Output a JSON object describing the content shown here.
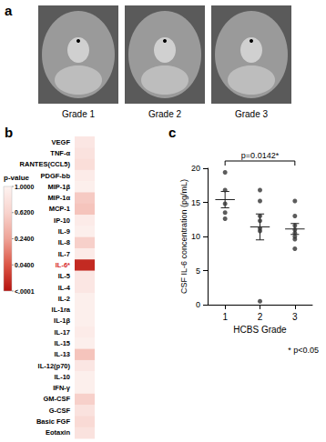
{
  "panel_labels": [
    "a",
    "b",
    "c"
  ],
  "images": {
    "labels": [
      "Grade 1",
      "Grade 2",
      "Grade 3"
    ]
  },
  "chart_data": [
    {
      "type": "heatmap",
      "categories": [
        "VEGF",
        "TNF-α",
        "RANTES(CCL5)",
        "PDGF-bb",
        "MIP-1β",
        "MIP-1α",
        "MCP-1",
        "IP-10",
        "IL-9",
        "IL-8",
        "IL-7",
        "IL-6*",
        "IL-5",
        "IL-4",
        "IL-2",
        "IL-1ra",
        "IL-1β",
        "IL-17",
        "IL-15",
        "IL-13",
        "IL-12(p70)",
        "IL-10",
        "IFN-γ",
        "GM-CSF",
        "G-CSF",
        "Basic FGF",
        "Eotaxin"
      ],
      "values": [
        0.85,
        0.8,
        0.75,
        0.9,
        0.95,
        0.55,
        0.5,
        0.9,
        0.95,
        0.6,
        0.9,
        0.0142,
        0.85,
        0.85,
        0.95,
        0.95,
        0.95,
        0.9,
        0.95,
        0.5,
        0.85,
        0.95,
        0.95,
        0.6,
        0.8,
        0.7,
        0.8
      ],
      "label_colors": [
        "#000000",
        "#000000",
        "#000000",
        "#000000",
        "#000000",
        "#000000",
        "#000000",
        "#000000",
        "#000000",
        "#000000",
        "#000000",
        "#d7261e",
        "#000000",
        "#000000",
        "#000000",
        "#000000",
        "#000000",
        "#000000",
        "#000000",
        "#000000",
        "#000000",
        "#000000",
        "#000000",
        "#000000",
        "#000000",
        "#000000",
        "#000000"
      ],
      "tick_labels": "y",
      "colorbar": {
        "title": "p-value",
        "range": [
          0.0001,
          1
        ],
        "ticks": [
          {
            "value": 1,
            "label": "1.0000"
          },
          {
            "value": 0.62,
            "label": "0.6200"
          },
          {
            "value": 0.24,
            "label": "0.2400"
          },
          {
            "value": 0.04,
            "label": "0.0400"
          },
          {
            "value": 0.0001,
            "label": "<.0001"
          }
        ]
      }
    },
    {
      "type": "scatter",
      "x_label": "HCBS Grade",
      "y_label": "CSF IL-6 concentration (pg/mL)",
      "categories": [
        1,
        2,
        3
      ],
      "values": [
        [
          19.4,
          16.8,
          14.8,
          13.5,
          12.6
        ],
        [
          16.8,
          15.2,
          13.0,
          12.3,
          11.2,
          10.8,
          0.5
        ],
        [
          15.2,
          13.0,
          11.6,
          11.0,
          10.5,
          10.0,
          9.6,
          8.2
        ]
      ],
      "mean": [
        15.4,
        11.4,
        11.1
      ],
      "sem": [
        1.2,
        1.9,
        0.8
      ],
      "color": "#333333",
      "marker": "circle",
      "ylim": [
        0,
        20
      ],
      "yticks": [
        0,
        5,
        10,
        15,
        20
      ],
      "grid": false,
      "annotations": [
        {
          "text": "p=0.0142*",
          "from": 1,
          "to": 3
        },
        {
          "text": "* p<0.05"
        }
      ]
    }
  ]
}
